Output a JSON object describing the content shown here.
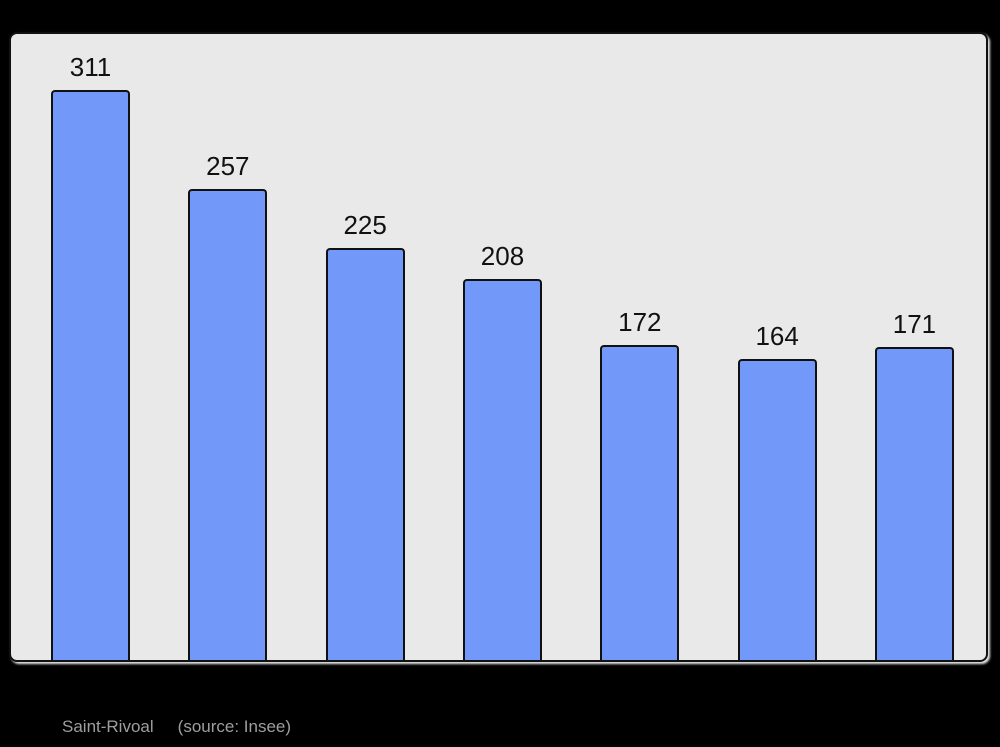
{
  "colors": {
    "page_bg": "#000000",
    "plot_bg": "#E9E9E9",
    "bar_fill": "#7298FA",
    "bar_border": "#111111",
    "value_label": "#111111",
    "caption": "#9E9E9E"
  },
  "caption": {
    "title": "Saint-Rivoal",
    "source": "(source: Insee)"
  },
  "chart_data": {
    "type": "bar",
    "title": "",
    "xlabel": "",
    "ylabel": "",
    "values": [
      311,
      257,
      225,
      208,
      172,
      164,
      171
    ],
    "data_labels": [
      "311",
      "257",
      "225",
      "208",
      "172",
      "164",
      "171"
    ],
    "ylim": [
      0,
      342
    ],
    "grid": false,
    "legend": false,
    "axes_visible": false,
    "value_labels_position": "above-bars",
    "bar_count": 7
  }
}
